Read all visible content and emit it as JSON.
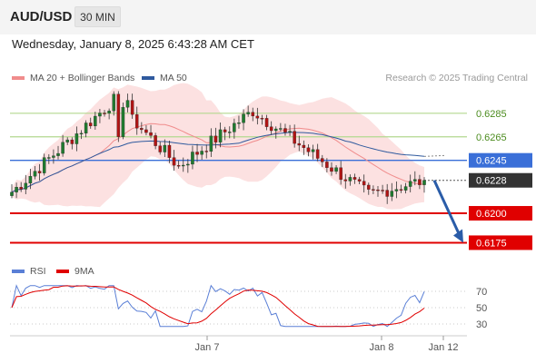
{
  "header": {
    "symbol": "AUD/USD",
    "timeframe": "30 MIN",
    "datetime": "Wednesday, January 8, 2025 6:43:28 AM CET"
  },
  "legend": {
    "ma20": {
      "label": "MA 20 + Bollinger Bands",
      "color": "#f08c8c"
    },
    "ma50": {
      "label": "MA 50",
      "color": "#2f5a9e"
    },
    "copyright": "Research © 2025 Trading Central"
  },
  "rsi_legend": {
    "rsi": {
      "label": "RSI",
      "color": "#5a7fd6"
    },
    "ma9": {
      "label": "9MA",
      "color": "#e00000"
    }
  },
  "colors": {
    "up_candle": "#1f7a2f",
    "down_candle": "#b01414",
    "bollinger_fill": "#fbd9d9",
    "resistance": "#b3d88f",
    "pivot": "#3a6fd8",
    "support": "#e00000",
    "current": "#333333",
    "arrow": "#2a5ca8"
  },
  "chart_data": [
    {
      "type": "candlestick",
      "title": "",
      "x_ticks": [
        "Jan 7",
        "Jan 8",
        "Jan 12"
      ],
      "ylim": [
        0.6163,
        0.6308
      ],
      "price_levels": [
        {
          "value": 0.6285,
          "label": "0.6285",
          "kind": "resistance"
        },
        {
          "value": 0.6265,
          "label": "0.6265",
          "kind": "resistance"
        },
        {
          "value": 0.6245,
          "label": "0.6245",
          "kind": "pivot"
        },
        {
          "value": 0.6228,
          "label": "0.6228",
          "kind": "current"
        },
        {
          "value": 0.62,
          "label": "0.6200",
          "kind": "support"
        },
        {
          "value": 0.6175,
          "label": "0.6175",
          "kind": "support"
        }
      ],
      "key_points": [
        {
          "x": "Jan 6 evening",
          "price": 0.6218
        },
        {
          "x": "Jan 6 spike high",
          "price": 0.6296
        },
        {
          "x": "Jan 7 consolidation",
          "price": 0.624
        },
        {
          "x": "Jan 7 high",
          "price": 0.6287
        },
        {
          "x": "Jan 8 low",
          "price": 0.6216
        },
        {
          "x": "Jan 8 latest",
          "price": 0.6228
        }
      ],
      "forecast_arrow": {
        "from": 0.6228,
        "to": 0.6175
      }
    },
    {
      "type": "line",
      "title": "",
      "ylim": [
        20,
        80
      ],
      "y_ticks": [
        70,
        50,
        30
      ],
      "series": [
        {
          "name": "RSI"
        },
        {
          "name": "9MA"
        }
      ]
    }
  ]
}
